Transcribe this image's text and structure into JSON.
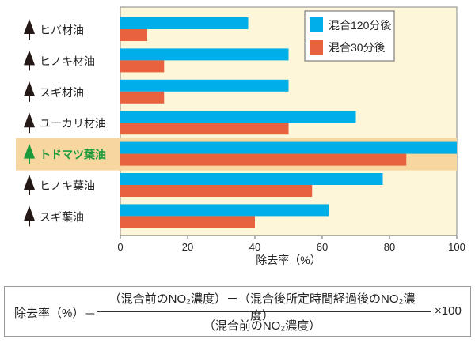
{
  "chart_data": {
    "type": "bar",
    "orientation": "horizontal",
    "categories": [
      "ヒバ材油",
      "ヒノキ材油",
      "スギ材油",
      "ユーカリ材油",
      "トドマツ葉油",
      "ヒノキ葉油",
      "スギ葉油"
    ],
    "highlight_category": "トドマツ葉油",
    "series": [
      {
        "name": "混合120分後",
        "color": "#00aee8",
        "values": [
          38,
          50,
          50,
          70,
          100,
          78,
          62
        ]
      },
      {
        "name": "混合30分後",
        "color": "#e8623e",
        "values": [
          8,
          13,
          13,
          50,
          85,
          57,
          40
        ]
      }
    ],
    "xlabel": "除去率（%）",
    "xlim": [
      0,
      100
    ],
    "xticks": [
      "0",
      "20",
      "40",
      "60",
      "80",
      "100"
    ],
    "legend_position": "top-right",
    "colors": {
      "background": "#fdf6d8",
      "highlight": "#f8d6a0",
      "highlight_text": "#1a9a3a",
      "icon": "#231815"
    }
  },
  "formula": {
    "lhs": "除去率（%）＝",
    "numerator": "（混合前のNO₂濃度）－（混合後所定時間経過後のNO₂濃度）",
    "denominator": "（混合前のNO₂濃度）",
    "multiplier": "×100"
  }
}
